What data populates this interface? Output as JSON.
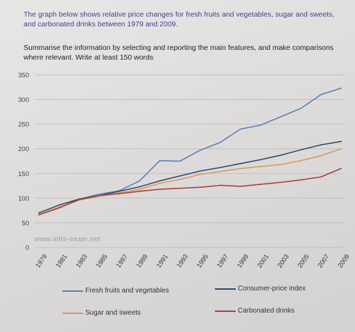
{
  "prompt": {
    "question": "The graph below shows relative price changes for fresh fruits and vegetables, sugar and sweets, and carbonated drinks between 1979 and 2009.",
    "instruction": "Summarise the information by selecting and reporting the main features, and make comparisons where relevant. Write at least 150 words"
  },
  "watermark": "www.ielts-exam.net",
  "chart_data": {
    "type": "line",
    "title": "",
    "xlabel": "",
    "ylabel": "",
    "ylim": [
      0,
      350
    ],
    "yticks": [
      0,
      50,
      100,
      150,
      200,
      250,
      300,
      350
    ],
    "x": [
      1979,
      1981,
      1983,
      1985,
      1987,
      1989,
      1991,
      1993,
      1995,
      1997,
      1999,
      2001,
      2003,
      2005,
      2007,
      2009
    ],
    "xtick_labels": [
      "1979",
      "1981",
      "1983",
      "1985",
      "1987",
      "1989",
      "1991",
      "1993",
      "1995",
      "1997",
      "1999",
      "2001",
      "2003",
      "2005",
      "2007",
      "2009"
    ],
    "grid": true,
    "legend_position": "bottom",
    "series": [
      {
        "name": "Fresh fruits and vegetables",
        "color": "#5b7fb2",
        "values": [
          66,
          81,
          98,
          108,
          115,
          135,
          176,
          175,
          197,
          213,
          240,
          248,
          265,
          282,
          310,
          323
        ]
      },
      {
        "name": "Consumer-price index",
        "color": "#2b4a6e",
        "values": [
          70,
          86,
          98,
          105,
          114,
          123,
          135,
          145,
          155,
          162,
          170,
          178,
          187,
          198,
          208,
          215
        ]
      },
      {
        "name": "Sugar and sweets",
        "color": "#d99a5a",
        "values": [
          67,
          82,
          96,
          104,
          111,
          118,
          130,
          138,
          148,
          154,
          160,
          164,
          168,
          176,
          186,
          200
        ]
      },
      {
        "name": "Carbonated drinks",
        "color": "#a8403a",
        "values": [
          66,
          80,
          97,
          105,
          109,
          114,
          118,
          120,
          122,
          126,
          124,
          128,
          132,
          137,
          143,
          160
        ]
      }
    ]
  }
}
